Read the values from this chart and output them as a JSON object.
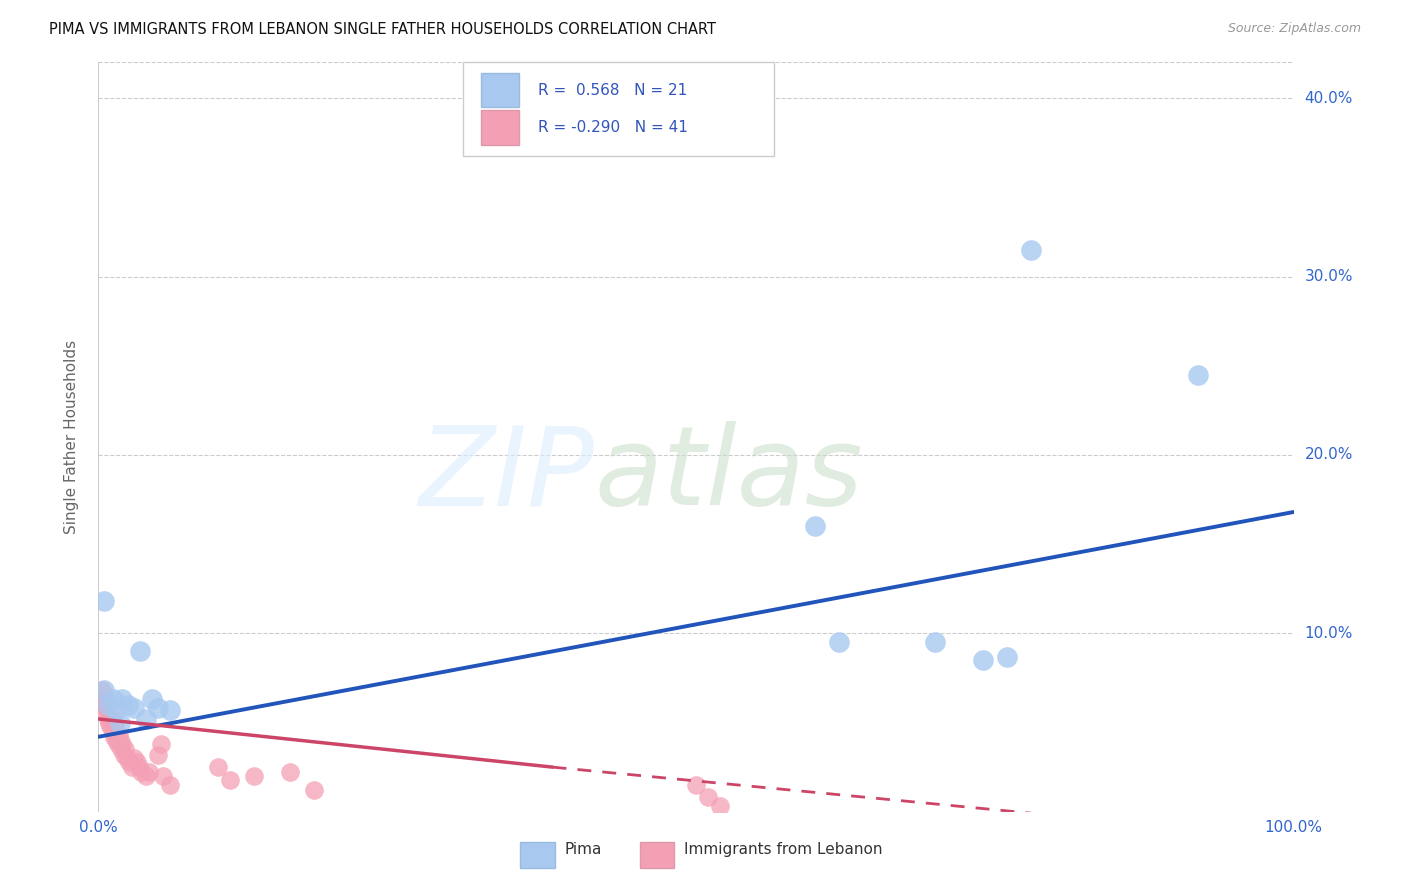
{
  "title": "PIMA VS IMMIGRANTS FROM LEBANON SINGLE FATHER HOUSEHOLDS CORRELATION CHART",
  "source": "Source: ZipAtlas.com",
  "ylabel": "Single Father Households",
  "xlim": [
    0,
    1.0
  ],
  "ylim": [
    0,
    0.42
  ],
  "xticks": [
    0.0,
    0.1,
    0.2,
    0.3,
    0.4,
    0.5,
    0.6,
    0.7,
    0.8,
    0.9,
    1.0
  ],
  "xticklabels": [
    "0.0%",
    "",
    "",
    "",
    "",
    "",
    "",
    "",
    "",
    "",
    "100.0%"
  ],
  "yticks": [
    0.0,
    0.1,
    0.2,
    0.3,
    0.4
  ],
  "yticklabels": [
    "",
    "10.0%",
    "20.0%",
    "30.0%",
    "40.0%"
  ],
  "pima_color": "#a8c8f0",
  "pima_edge_color": "#7aaed8",
  "lebanon_color": "#f4a0b4",
  "lebanon_edge_color": "#e07090",
  "pima_line_color": "#2255bb",
  "lebanon_line_color": "#cc4466",
  "pima_points": [
    [
      0.005,
      0.118
    ],
    [
      0.005,
      0.068
    ],
    [
      0.008,
      0.06
    ],
    [
      0.012,
      0.063
    ],
    [
      0.015,
      0.057
    ],
    [
      0.018,
      0.05
    ],
    [
      0.02,
      0.063
    ],
    [
      0.025,
      0.06
    ],
    [
      0.03,
      0.058
    ],
    [
      0.035,
      0.09
    ],
    [
      0.04,
      0.052
    ],
    [
      0.045,
      0.063
    ],
    [
      0.05,
      0.058
    ],
    [
      0.06,
      0.057
    ],
    [
      0.6,
      0.16
    ],
    [
      0.62,
      0.095
    ],
    [
      0.7,
      0.095
    ],
    [
      0.74,
      0.085
    ],
    [
      0.76,
      0.087
    ],
    [
      0.78,
      0.315
    ],
    [
      0.92,
      0.245
    ]
  ],
  "lebanon_points": [
    [
      0.003,
      0.068
    ],
    [
      0.004,
      0.063
    ],
    [
      0.005,
      0.06
    ],
    [
      0.006,
      0.058
    ],
    [
      0.007,
      0.055
    ],
    [
      0.008,
      0.052
    ],
    [
      0.009,
      0.05
    ],
    [
      0.01,
      0.048
    ],
    [
      0.011,
      0.053
    ],
    [
      0.012,
      0.045
    ],
    [
      0.013,
      0.042
    ],
    [
      0.014,
      0.048
    ],
    [
      0.015,
      0.04
    ],
    [
      0.016,
      0.038
    ],
    [
      0.017,
      0.043
    ],
    [
      0.018,
      0.04
    ],
    [
      0.019,
      0.035
    ],
    [
      0.02,
      0.038
    ],
    [
      0.021,
      0.032
    ],
    [
      0.022,
      0.035
    ],
    [
      0.024,
      0.03
    ],
    [
      0.026,
      0.028
    ],
    [
      0.028,
      0.025
    ],
    [
      0.03,
      0.03
    ],
    [
      0.032,
      0.028
    ],
    [
      0.034,
      0.025
    ],
    [
      0.036,
      0.022
    ],
    [
      0.04,
      0.02
    ],
    [
      0.042,
      0.022
    ],
    [
      0.05,
      0.032
    ],
    [
      0.052,
      0.038
    ],
    [
      0.054,
      0.02
    ],
    [
      0.06,
      0.015
    ],
    [
      0.1,
      0.025
    ],
    [
      0.11,
      0.018
    ],
    [
      0.13,
      0.02
    ],
    [
      0.16,
      0.022
    ],
    [
      0.18,
      0.012
    ],
    [
      0.5,
      0.015
    ],
    [
      0.51,
      0.008
    ],
    [
      0.52,
      0.003
    ]
  ],
  "pima_trendline": [
    [
      0.0,
      0.042
    ],
    [
      1.0,
      0.168
    ]
  ],
  "lebanon_trendline_solid": [
    [
      0.0,
      0.052
    ],
    [
      0.38,
      0.025
    ]
  ],
  "lebanon_trendline_dashed": [
    [
      0.38,
      0.025
    ],
    [
      1.0,
      -0.015
    ]
  ]
}
